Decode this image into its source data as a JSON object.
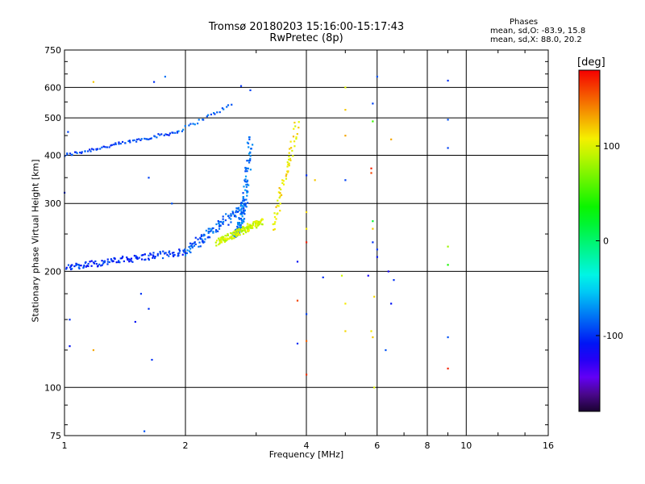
{
  "title": "Tromsø 20180203 15:16:00-15:17:43",
  "subtitle": "RwPretec (8p)",
  "phases_box": {
    "heading": "Phases",
    "line_o": "mean, sd,O: -83.9, 15.8",
    "line_x": "mean, sd,X:  88.0, 20.2"
  },
  "colorbar": {
    "label": "[deg]",
    "range": [
      -180,
      180
    ],
    "ticks": [
      {
        "value": 100,
        "label": "100"
      },
      {
        "value": 0,
        "label": "0"
      },
      {
        "value": -100,
        "label": "-100"
      }
    ],
    "colormap": "rainbow"
  },
  "chart_data": {
    "type": "scatter",
    "title": "Tromsø 20180203 15:16:00-15:17:43",
    "subtitle": "RwPretec (8p)",
    "xlabel": "Frequency [MHz]",
    "ylabel": "Stationary phase Virtual Height [km]",
    "x_scale": "log",
    "y_scale": "log",
    "xlim": [
      1,
      16
    ],
    "ylim": [
      75,
      750
    ],
    "grid": true,
    "x_ticks": [
      {
        "value": 1,
        "label": "1"
      },
      {
        "value": 2,
        "label": "2"
      },
      {
        "value": 4,
        "label": "4"
      },
      {
        "value": 6,
        "label": "6"
      },
      {
        "value": 8,
        "label": "8"
      },
      {
        "value": 10,
        "label": "10"
      },
      {
        "value": 16,
        "label": "16"
      }
    ],
    "y_ticks": [
      {
        "value": 75,
        "label": "75"
      },
      {
        "value": 100,
        "label": "100"
      },
      {
        "value": 200,
        "label": "200"
      },
      {
        "value": 300,
        "label": "300"
      },
      {
        "value": 400,
        "label": "400"
      },
      {
        "value": 500,
        "label": "500"
      },
      {
        "value": 600,
        "label": "600"
      },
      {
        "value": 750,
        "label": "750"
      }
    ],
    "color_by": "phase_deg",
    "traces": [
      {
        "x_range": [
          1.0,
          1.9
        ],
        "y_range": [
          400,
          460
        ],
        "phase": -95,
        "spread": 0.02,
        "count": 70
      },
      {
        "x_range": [
          1.9,
          2.6
        ],
        "y_range": [
          460,
          540
        ],
        "phase": -85,
        "spread": 0.02,
        "count": 25
      },
      {
        "x_range": [
          1.0,
          2.0
        ],
        "y_range": [
          205,
          225
        ],
        "phase": -100,
        "spread": 0.04,
        "count": 130
      },
      {
        "x_range": [
          2.0,
          2.85
        ],
        "y_range": [
          225,
          300
        ],
        "phase": -85,
        "spread": 0.06,
        "count": 110
      },
      {
        "x_range": [
          2.65,
          2.9
        ],
        "y_range": [
          250,
          440
        ],
        "phase": -80,
        "spread": 0.05,
        "count": 140
      },
      {
        "x_range": [
          2.4,
          3.1
        ],
        "y_range": [
          238,
          270
        ],
        "phase": 95,
        "spread": 0.04,
        "count": 150
      },
      {
        "x_range": [
          3.3,
          3.8
        ],
        "y_range": [
          260,
          480
        ],
        "phase": 110,
        "spread": 0.05,
        "count": 60
      }
    ],
    "points": [
      {
        "x": 1.18,
        "y": 620,
        "phase": 120
      },
      {
        "x": 1.67,
        "y": 620,
        "phase": -100
      },
      {
        "x": 1.78,
        "y": 640,
        "phase": -80
      },
      {
        "x": 1.62,
        "y": 350,
        "phase": -95
      },
      {
        "x": 1.85,
        "y": 300,
        "phase": -90
      },
      {
        "x": 1.0,
        "y": 320,
        "phase": -100
      },
      {
        "x": 1.02,
        "y": 460,
        "phase": -95
      },
      {
        "x": 1.55,
        "y": 175,
        "phase": -100
      },
      {
        "x": 1.62,
        "y": 160,
        "phase": -100
      },
      {
        "x": 1.5,
        "y": 148,
        "phase": -110
      },
      {
        "x": 1.65,
        "y": 118,
        "phase": -100
      },
      {
        "x": 1.18,
        "y": 125,
        "phase": 130
      },
      {
        "x": 1.03,
        "y": 150,
        "phase": -100
      },
      {
        "x": 1.03,
        "y": 128,
        "phase": -110
      },
      {
        "x": 1.58,
        "y": 77,
        "phase": -90
      },
      {
        "x": 2.75,
        "y": 605,
        "phase": -100
      },
      {
        "x": 2.9,
        "y": 590,
        "phase": -95
      },
      {
        "x": 3.8,
        "y": 168,
        "phase": 160
      },
      {
        "x": 3.8,
        "y": 130,
        "phase": -100
      },
      {
        "x": 3.8,
        "y": 212,
        "phase": -110
      },
      {
        "x": 4.0,
        "y": 238,
        "phase": 170
      },
      {
        "x": 4.0,
        "y": 258,
        "phase": 110
      },
      {
        "x": 4.0,
        "y": 285,
        "phase": 115
      },
      {
        "x": 4.0,
        "y": 355,
        "phase": -100
      },
      {
        "x": 4.0,
        "y": 155,
        "phase": -95
      },
      {
        "x": 4.0,
        "y": 132,
        "phase": 150
      },
      {
        "x": 4.0,
        "y": 108,
        "phase": 165
      },
      {
        "x": 4.2,
        "y": 345,
        "phase": 120
      },
      {
        "x": 4.4,
        "y": 193,
        "phase": -100
      },
      {
        "x": 4.9,
        "y": 195,
        "phase": 95
      },
      {
        "x": 5.0,
        "y": 345,
        "phase": -95
      },
      {
        "x": 5.0,
        "y": 600,
        "phase": 100
      },
      {
        "x": 5.0,
        "y": 525,
        "phase": 120
      },
      {
        "x": 5.0,
        "y": 450,
        "phase": 130
      },
      {
        "x": 5.0,
        "y": 165,
        "phase": 110
      },
      {
        "x": 5.0,
        "y": 140,
        "phase": 115
      },
      {
        "x": 5.7,
        "y": 195,
        "phase": -120
      },
      {
        "x": 5.8,
        "y": 370,
        "phase": 170
      },
      {
        "x": 5.8,
        "y": 360,
        "phase": 160
      },
      {
        "x": 5.85,
        "y": 545,
        "phase": -95
      },
      {
        "x": 5.85,
        "y": 490,
        "phase": 50
      },
      {
        "x": 5.85,
        "y": 270,
        "phase": 20
      },
      {
        "x": 5.85,
        "y": 258,
        "phase": 120
      },
      {
        "x": 5.85,
        "y": 238,
        "phase": -100
      },
      {
        "x": 5.8,
        "y": 140,
        "phase": 110
      },
      {
        "x": 5.85,
        "y": 135,
        "phase": 120
      },
      {
        "x": 5.9,
        "y": 172,
        "phase": 115
      },
      {
        "x": 5.9,
        "y": 100,
        "phase": 100
      },
      {
        "x": 6.0,
        "y": 640,
        "phase": -90
      },
      {
        "x": 6.0,
        "y": 228,
        "phase": -100
      },
      {
        "x": 6.0,
        "y": 218,
        "phase": -110
      },
      {
        "x": 6.3,
        "y": 125,
        "phase": -90
      },
      {
        "x": 6.4,
        "y": 200,
        "phase": -120
      },
      {
        "x": 6.5,
        "y": 165,
        "phase": -110
      },
      {
        "x": 6.6,
        "y": 190,
        "phase": -100
      },
      {
        "x": 6.5,
        "y": 440,
        "phase": 130
      },
      {
        "x": 9.0,
        "y": 625,
        "phase": -100
      },
      {
        "x": 9.0,
        "y": 495,
        "phase": -90
      },
      {
        "x": 9.0,
        "y": 418,
        "phase": -95
      },
      {
        "x": 9.0,
        "y": 232,
        "phase": 80
      },
      {
        "x": 9.0,
        "y": 208,
        "phase": 40
      },
      {
        "x": 9.0,
        "y": 135,
        "phase": -90
      },
      {
        "x": 9.0,
        "y": 112,
        "phase": 170
      }
    ]
  }
}
